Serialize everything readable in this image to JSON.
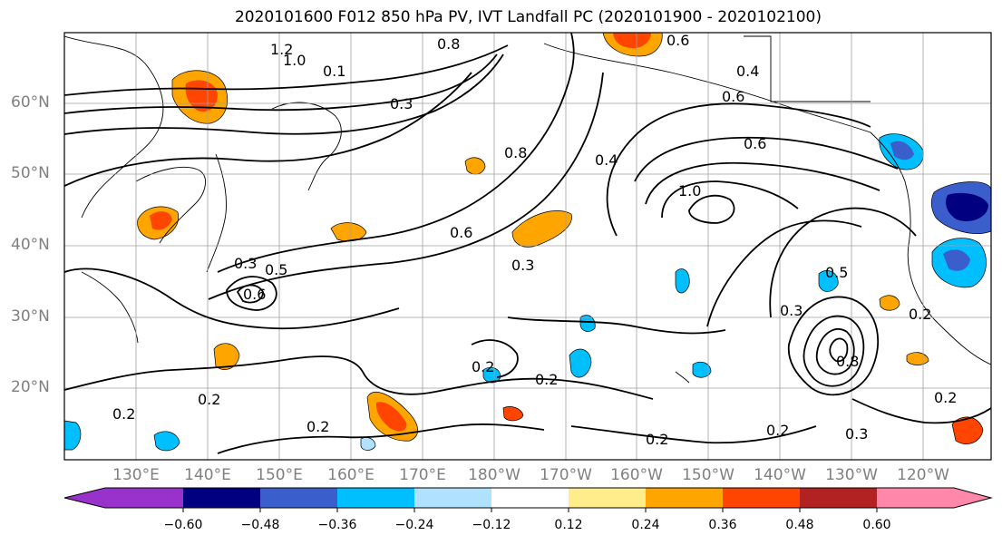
{
  "title": "2020101600 F012 850 hPa PV, IVT Landfall PC (2020101900 - 2020102100)",
  "axes": {
    "lat_labels": [
      "60°N",
      "50°N",
      "40°N",
      "30°N",
      "20°N"
    ],
    "lon_labels": [
      "130°E",
      "140°E",
      "150°E",
      "160°E",
      "170°E",
      "180°W",
      "170°W",
      "160°W",
      "150°W",
      "140°W",
      "130°W",
      "120°W"
    ],
    "grid_color": "#a0a0a0",
    "label_color": "#808080"
  },
  "contour_labels": [
    "1.2",
    "1.0",
    "0.8",
    "0.6",
    "0.5",
    "0.4",
    "0.3",
    "0.2",
    "0.1",
    "0.6",
    "0.3",
    "0.2",
    "0.2",
    "0.2",
    "0.2",
    "0.2",
    "0.2",
    "0.3",
    "0.5",
    "0.6",
    "0.3",
    "0.4",
    "0.6",
    "0.8",
    "1.0",
    "0.6",
    "0.2",
    "0.2",
    "0.3",
    "0.8"
  ],
  "colorbar": {
    "ticks": [
      "−0.60",
      "−0.48",
      "−0.36",
      "−0.24",
      "−0.12",
      "0.12",
      "0.24",
      "0.36",
      "0.48",
      "0.60"
    ],
    "colors": [
      "#9932cc",
      "#000080",
      "#3a5fcd",
      "#00bfff",
      "#b0e2ff",
      "#ffffff",
      "#ffec8b",
      "#ffa500",
      "#ff4500",
      "#b22222",
      "#ff88aa"
    ]
  },
  "shading_colors": {
    "neg_light": "#b0e2ff",
    "neg_mid": "#00bfff",
    "neg_strong": "#3a5fcd",
    "neg_max": "#000080",
    "pos_light": "#ffec8b",
    "pos_mid": "#ffa500",
    "pos_strong": "#ff4500"
  }
}
